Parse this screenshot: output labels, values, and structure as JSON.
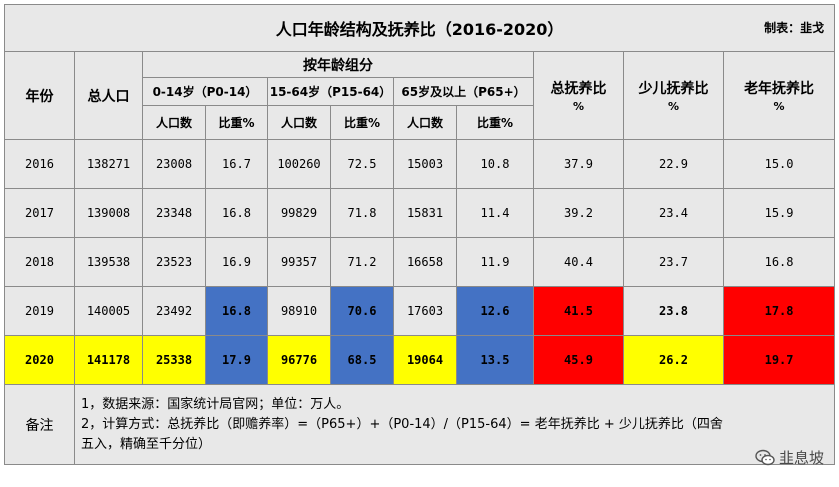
{
  "title": "人口年龄结构及抚养比（2016-2020）",
  "author": "制表：韭戈",
  "headers": {
    "year": "年份",
    "total_pop": "总人口",
    "age_group": "按年龄组分",
    "groups": [
      "0-14岁（P0-14）",
      "15-64岁（P15-64）",
      "65岁及以上（P65+）"
    ],
    "sub_count": "人口数",
    "sub_pct": "比重%",
    "total_dep": "总抚养比",
    "child_dep": "少儿抚养比",
    "old_dep": "老年抚养比",
    "pct_unit": "%"
  },
  "rows": [
    {
      "year": "2016",
      "total": "138271",
      "p014": "23008",
      "p014_pct": "16.7",
      "p1564": "100260",
      "p1564_pct": "72.5",
      "p65": "15003",
      "p65_pct": "10.8",
      "total_dep": "37.9",
      "child_dep": "22.9",
      "old_dep": "15.0"
    },
    {
      "year": "2017",
      "total": "139008",
      "p014": "23348",
      "p014_pct": "16.8",
      "p1564": "99829",
      "p1564_pct": "71.8",
      "p65": "15831",
      "p65_pct": "11.4",
      "total_dep": "39.2",
      "child_dep": "23.4",
      "old_dep": "15.9"
    },
    {
      "year": "2018",
      "total": "139538",
      "p014": "23523",
      "p014_pct": "16.9",
      "p1564": "99357",
      "p1564_pct": "71.2",
      "p65": "16658",
      "p65_pct": "11.9",
      "total_dep": "40.4",
      "child_dep": "23.7",
      "old_dep": "16.8"
    },
    {
      "year": "2019",
      "total": "140005",
      "p014": "23492",
      "p014_pct": "16.8",
      "p1564": "98910",
      "p1564_pct": "70.6",
      "p65": "17603",
      "p65_pct": "12.6",
      "total_dep": "41.5",
      "child_dep": "23.8",
      "old_dep": "17.8"
    },
    {
      "year": "2020",
      "total": "141178",
      "p014": "25338",
      "p014_pct": "17.9",
      "p1564": "96776",
      "p1564_pct": "68.5",
      "p65": "19064",
      "p65_pct": "13.5",
      "total_dep": "45.9",
      "child_dep": "26.2",
      "old_dep": "19.7"
    }
  ],
  "notes": {
    "label": "备注",
    "line1": "1，数据来源：国家统计局官网；单位：万人。",
    "line2": "2，计算方式：总抚养比（即赡养率）=（P65+）+（P0-14）/（P15-64）= 老年抚养比 + 少儿抚养比（四舍五入，精确至千分位）"
  },
  "watermark": "韭息坡",
  "colors": {
    "gray": "#e8e8e8",
    "blue": "#4472c4",
    "red": "#ff0000",
    "yellow": "#ffff00"
  }
}
